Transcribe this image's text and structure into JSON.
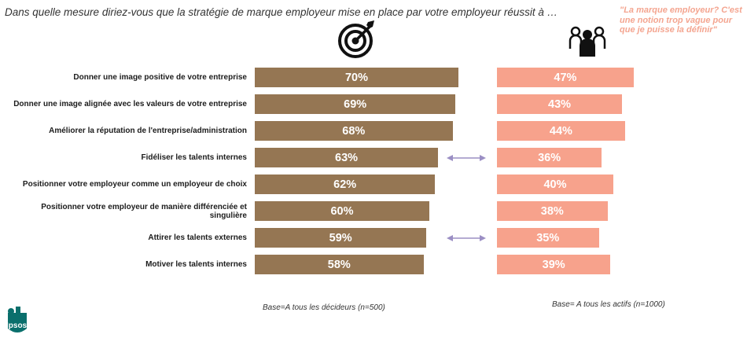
{
  "header": {
    "question": "Dans quelle mesure diriez-vous que la stratégie de marque employeur mise en place par votre employeur réussit à …",
    "quote": "\"La marque employeur? C'est une notion trop vague pour que je puisse la définir\""
  },
  "icons": {
    "left": "target-arrow-icon",
    "right": "people-group-icon"
  },
  "colors": {
    "left_series": "#957653",
    "right_series": "#f7a28c",
    "arrow": "#9b8fc4",
    "quote": "#f4a590",
    "logo": "#0a6f6c"
  },
  "chart_data": {
    "type": "bar",
    "orientation": "horizontal",
    "categories": [
      "Donner une image positive de votre entreprise",
      "Donner une image alignée avec les valeurs de votre entreprise",
      "Améliorer la réputation de l'entreprise/administration",
      "Fidéliser les talents internes",
      "Positionner votre employeur comme un employeur de choix",
      "Positionner votre employeur de manière différenciée et singulière",
      "Attirer les talents externes",
      "Motiver les talents internes"
    ],
    "series": [
      {
        "values": [
          70,
          69,
          68,
          63,
          62,
          60,
          59,
          58
        ],
        "labels": [
          "70%",
          "69%",
          "68%",
          "63%",
          "62%",
          "60%",
          "59%",
          "58%"
        ]
      },
      {
        "values": [
          47,
          43,
          44,
          36,
          40,
          38,
          35,
          39
        ],
        "labels": [
          "47%",
          "43%",
          "44%",
          "36%",
          "40%",
          "38%",
          "35%",
          "39%"
        ]
      }
    ],
    "highlighted_rows": [
      3,
      6
    ],
    "xlim": [
      0,
      100
    ]
  },
  "footer": {
    "base_left": "Base=A tous les décideurs  (n=500)",
    "base_right": "Base= A tous les actifs  (n=1000)",
    "logo_text": "Ipsos"
  }
}
